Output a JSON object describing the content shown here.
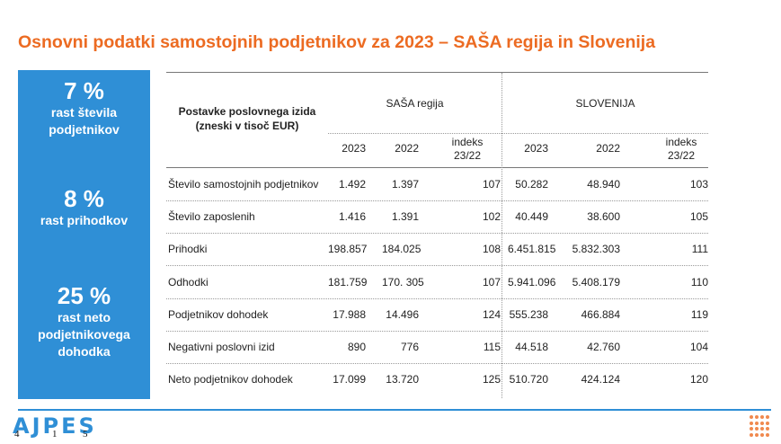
{
  "title": "Osnovni podatki samostojnih podjetnikov za 2023 – SAŠA regija in Slovenija",
  "sidebar": {
    "stats": [
      {
        "value": "7 %",
        "label_lines": [
          "rast števila",
          "podjetnikov"
        ]
      },
      {
        "value": "8 %",
        "label_lines": [
          "rast prihodkov"
        ]
      },
      {
        "value": "25 %",
        "label_lines": [
          "rast neto",
          "podjetnikovega",
          "dohodka"
        ]
      }
    ]
  },
  "table": {
    "row_header": [
      "Postavke poslovnega izida",
      "(zneski v tisoč EUR)"
    ],
    "groups": [
      "SAŠA regija",
      "SLOVENIJA"
    ],
    "sub_headers": [
      "2023",
      "2022",
      "indeks",
      "23/22",
      "2023",
      "2022",
      "indeks",
      "23/22"
    ],
    "rows": [
      {
        "label": "Število samostojnih podjetnikov",
        "values": [
          "1.492",
          "1.397",
          "107",
          "50.282",
          "48.940",
          "103"
        ]
      },
      {
        "label": "Število zaposlenih",
        "values": [
          "1.416",
          "1.391",
          "102",
          "40.449",
          "38.600",
          "105"
        ]
      },
      {
        "label": "Prihodki",
        "values": [
          "198.857",
          "184.025",
          "108",
          "6.451.815",
          "5.832.303",
          "111"
        ]
      },
      {
        "label": "Odhodki",
        "values": [
          "181.759",
          "170. 305",
          "107",
          "5.941.096",
          "5.408.179",
          "110"
        ]
      },
      {
        "label": "Podjetnikov dohodek",
        "values": [
          "17.988",
          "14.496",
          "124",
          "555.238",
          "466.884",
          "119"
        ]
      },
      {
        "label": "Negativni poslovni izid",
        "values": [
          "890",
          "776",
          "115",
          "44.518",
          "42.760",
          "104"
        ]
      },
      {
        "label": "Neto podjetnikov dohodek",
        "values": [
          "17.099",
          "13.720",
          "125",
          "510.720",
          "424.124",
          "120"
        ]
      }
    ]
  },
  "footer": {
    "logo_text": "AJPES",
    "page_digits": [
      "4",
      "1",
      "5"
    ]
  },
  "colors": {
    "accent": "#ec6b22",
    "sidebar": "#2f8fd6"
  }
}
